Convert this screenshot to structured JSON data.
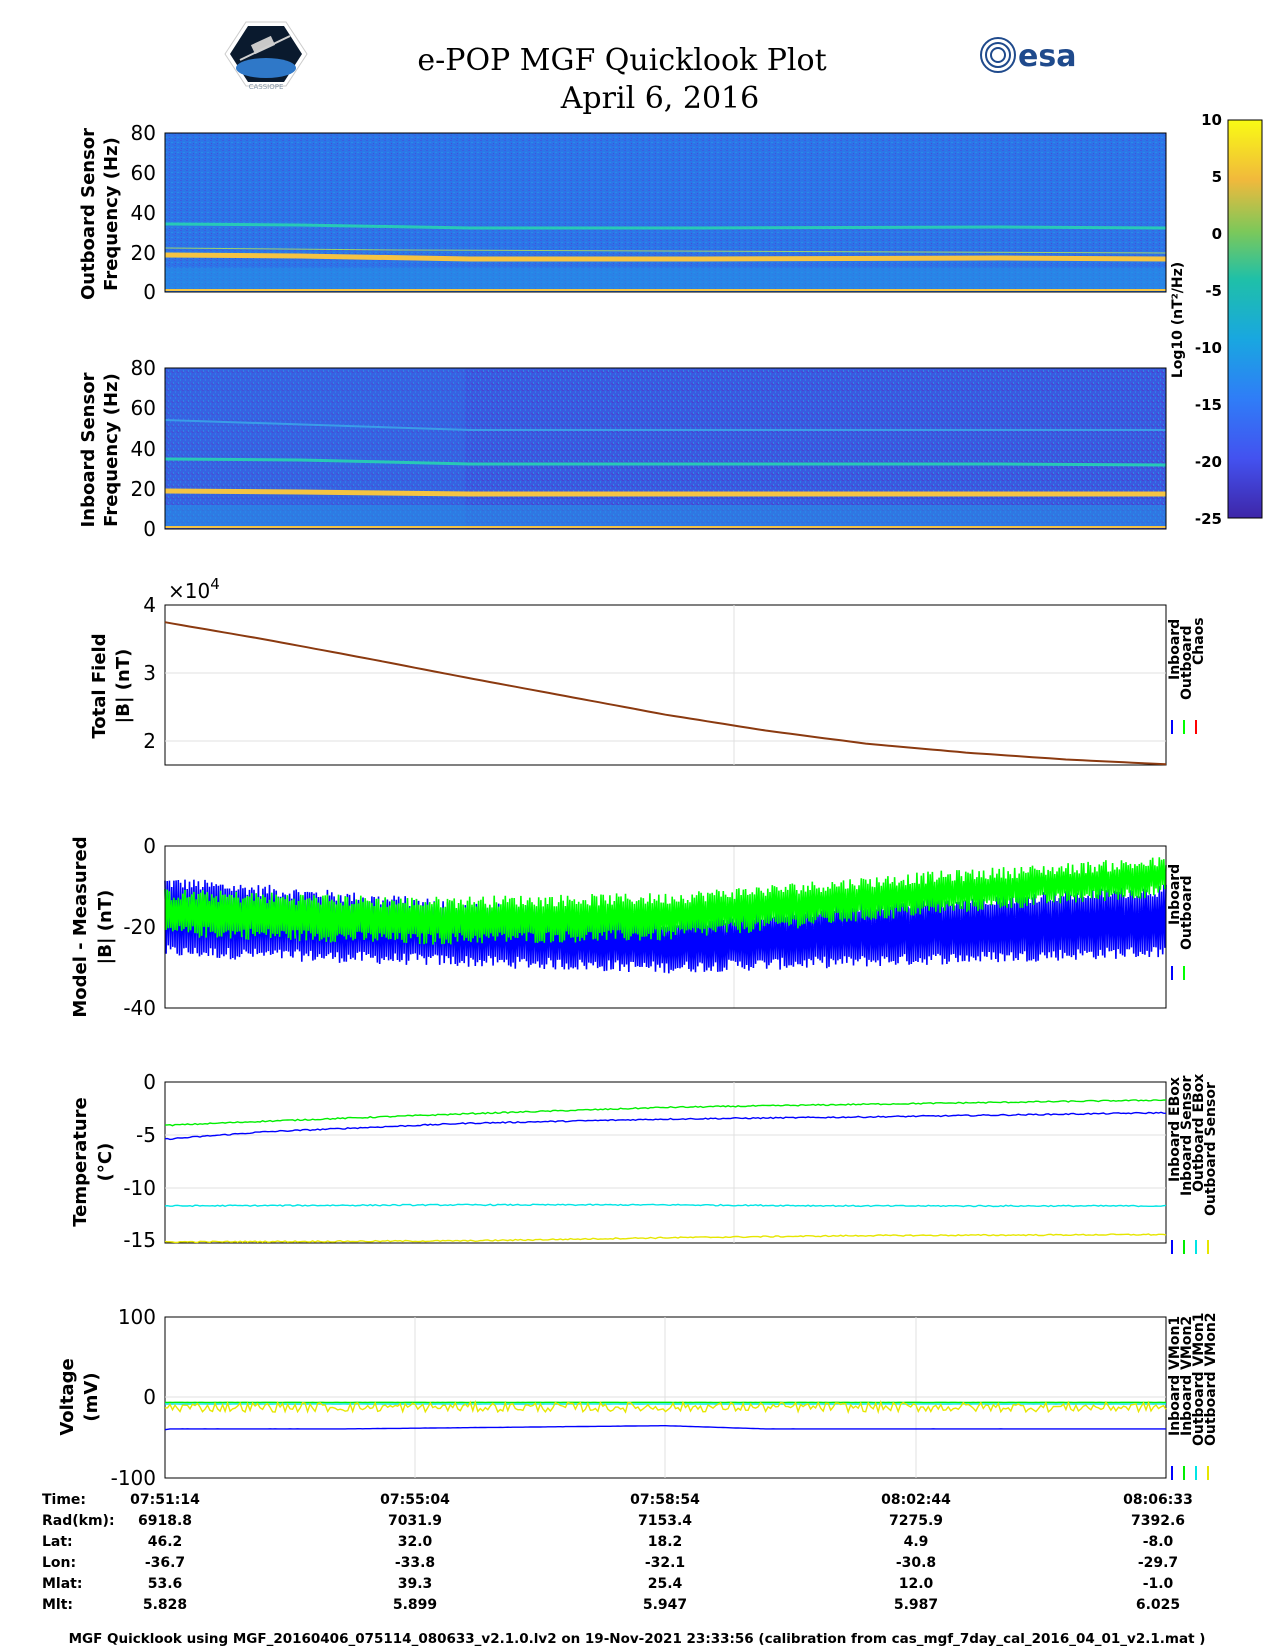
{
  "header": {
    "title": "e-POP MGF Quicklook Plot",
    "subtitle": "April 6, 2016",
    "left_logo": "CASSIOPE",
    "right_logo": "esa"
  },
  "colorbar": {
    "label": "Log10 (nT²/Hz)",
    "ticks": [
      "10",
      "5",
      "0",
      "-5",
      "-10",
      "-15",
      "-20",
      "-25"
    ],
    "range": [
      -25,
      10
    ]
  },
  "colors": {
    "inboard": "#0000ff",
    "outboard": "#00ff00",
    "chaos": "#ff0000",
    "cyan": "#00e5e5",
    "yellow": "#ffff00",
    "spectrogram_bg": "#2d7fe8",
    "line_20hz": "#f5c443",
    "line_35hz": "#28c9b6"
  },
  "footer": "MGF Quicklook using MGF_20160406_075114_080633_v2.1.0.lv2 on 19-Nov-2021 23:33:56 (calibration from cas_mgf_7day_cal_2016_04_01_v2.1.mat )",
  "ephemeris": {
    "labels": [
      "Time:",
      "Rad(km):",
      "Lat:",
      "Lon:",
      "Mlat:",
      "Mlt:"
    ],
    "columns": [
      [
        "07:51:14",
        "6918.8",
        "46.2",
        "-36.7",
        "53.6",
        "5.828"
      ],
      [
        "07:55:04",
        "7031.9",
        "32.0",
        "-33.8",
        "39.3",
        "5.899"
      ],
      [
        "07:58:54",
        "7153.4",
        "18.2",
        "-32.1",
        "25.4",
        "5.947"
      ],
      [
        "08:02:44",
        "7275.9",
        "4.9",
        "-30.8",
        "12.0",
        "5.987"
      ],
      [
        "08:06:33",
        "7392.6",
        "-8.0",
        "-29.7",
        "-1.0",
        "6.025"
      ]
    ]
  },
  "chart_data": [
    {
      "type": "heatmap",
      "name": "outboard-spectrogram",
      "ylabel": [
        "Outboard Sensor",
        "Frequency (Hz)"
      ],
      "yticks": [
        "80",
        "60",
        "40",
        "20",
        "0"
      ],
      "ylim": [
        0,
        80
      ],
      "spectral_lines_hz": [
        17,
        34
      ],
      "colorbar_scale": "log10 nT^2/Hz, -25 to 10"
    },
    {
      "type": "heatmap",
      "name": "inboard-spectrogram",
      "ylabel": [
        "Inboard Sensor",
        "Frequency (Hz)"
      ],
      "yticks": [
        "80",
        "60",
        "40",
        "20",
        "0"
      ],
      "ylim": [
        0,
        80
      ],
      "spectral_lines_hz": [
        17,
        34,
        50
      ],
      "colorbar_scale": "log10 nT^2/Hz, -25 to 10"
    },
    {
      "type": "line",
      "name": "total-field",
      "ylabel": [
        "Total Field",
        "|B| (nT)"
      ],
      "exponent": "×10",
      "exponent_power": "4",
      "yticks": [
        "4",
        "3",
        "2"
      ],
      "ylim": [
        1.68,
        4.0
      ],
      "xlim": [
        0,
        1
      ],
      "legend": [
        "Inboard",
        "Outboard",
        "Chaos"
      ],
      "series": [
        {
          "name": "Chaos",
          "color": "#8b3a10",
          "x": [
            0,
            0.1,
            0.2,
            0.3,
            0.4,
            0.5,
            0.6,
            0.7,
            0.8,
            0.9,
            1.0
          ],
          "values": [
            3.75,
            3.5,
            3.23,
            2.95,
            2.68,
            2.41,
            2.18,
            1.99,
            1.86,
            1.76,
            1.69
          ]
        }
      ]
    },
    {
      "type": "area",
      "name": "model-minus-measured",
      "ylabel": [
        "Model - Measured",
        "|B| (nT)"
      ],
      "yticks": [
        "0",
        "-20",
        "-40"
      ],
      "ylim": [
        -40,
        0
      ],
      "legend": [
        "Inboard",
        "Outboard"
      ],
      "series": [
        {
          "name": "Inboard",
          "color": "#0000ff",
          "x": [
            0,
            0.25,
            0.5,
            0.75,
            1.0
          ],
          "upper": [
            -9,
            -14,
            -19,
            -14,
            -11
          ],
          "lower": [
            -26,
            -28,
            -30,
            -28,
            -26
          ]
        },
        {
          "name": "Outboard",
          "color": "#00ff00",
          "x": [
            0,
            0.25,
            0.5,
            0.75,
            1.0
          ],
          "upper": [
            -12,
            -14,
            -13,
            -8,
            -4
          ],
          "lower": [
            -21,
            -23,
            -22,
            -16,
            -11
          ]
        }
      ]
    },
    {
      "type": "line",
      "name": "temperature",
      "ylabel": [
        "Temperature",
        "(°C)"
      ],
      "yticks": [
        "0",
        "-5",
        "-10",
        "-15"
      ],
      "ylim": [
        -15.2,
        0
      ],
      "legend": [
        "Inboard EBox",
        "Inboard Sensor",
        "Outboard EBox",
        "Outboard Sensor"
      ],
      "series": [
        {
          "name": "Inboard EBox",
          "color": "#0000ff",
          "x": [
            0,
            0.1,
            0.3,
            0.5,
            0.7,
            1.0
          ],
          "values": [
            -5.4,
            -4.7,
            -3.9,
            -3.5,
            -3.3,
            -2.9
          ]
        },
        {
          "name": "Inboard Sensor",
          "color": "#00ee00",
          "x": [
            0,
            0.1,
            0.3,
            0.5,
            0.7,
            1.0
          ],
          "values": [
            -4.1,
            -3.7,
            -3.0,
            -2.4,
            -2.1,
            -1.7
          ]
        },
        {
          "name": "Outboard EBox",
          "color": "#00e5e5",
          "x": [
            0,
            0.3,
            0.5,
            0.7,
            1.0
          ],
          "values": [
            -11.7,
            -11.6,
            -11.6,
            -11.7,
            -11.7
          ]
        },
        {
          "name": "Outboard Sensor",
          "color": "#e6e600",
          "x": [
            0,
            0.3,
            0.5,
            0.7,
            1.0
          ],
          "values": [
            -15.1,
            -15.0,
            -14.7,
            -14.5,
            -14.4
          ]
        }
      ]
    },
    {
      "type": "line",
      "name": "voltage",
      "ylabel": [
        "Voltage",
        "(mV)"
      ],
      "yticks": [
        "100",
        "0",
        "-100"
      ],
      "ylim": [
        -100,
        100
      ],
      "legend": [
        "Inboard VMon1",
        "Inboard VMon2",
        "Outboard VMon1",
        "Outboard VMon2"
      ],
      "series": [
        {
          "name": "Inboard VMon1",
          "color": "#0000ff",
          "x": [
            0,
            0.005,
            0.18,
            0.5,
            0.6,
            1.0
          ],
          "values": [
            -40,
            -39,
            -39,
            -35,
            -39,
            -39
          ]
        },
        {
          "name": "Inboard VMon2",
          "color": "#00ee00",
          "x": [
            0,
            1.0
          ],
          "values": [
            -6,
            -6
          ]
        },
        {
          "name": "Outboard VMon1",
          "color": "#00e5e5",
          "x": [
            0,
            1.0
          ],
          "values": [
            -8,
            -8
          ]
        },
        {
          "name": "Outboard VMon2",
          "color": "#e6e600",
          "x": [
            0,
            1.0
          ],
          "values": [
            -12,
            -12
          ]
        }
      ]
    }
  ]
}
